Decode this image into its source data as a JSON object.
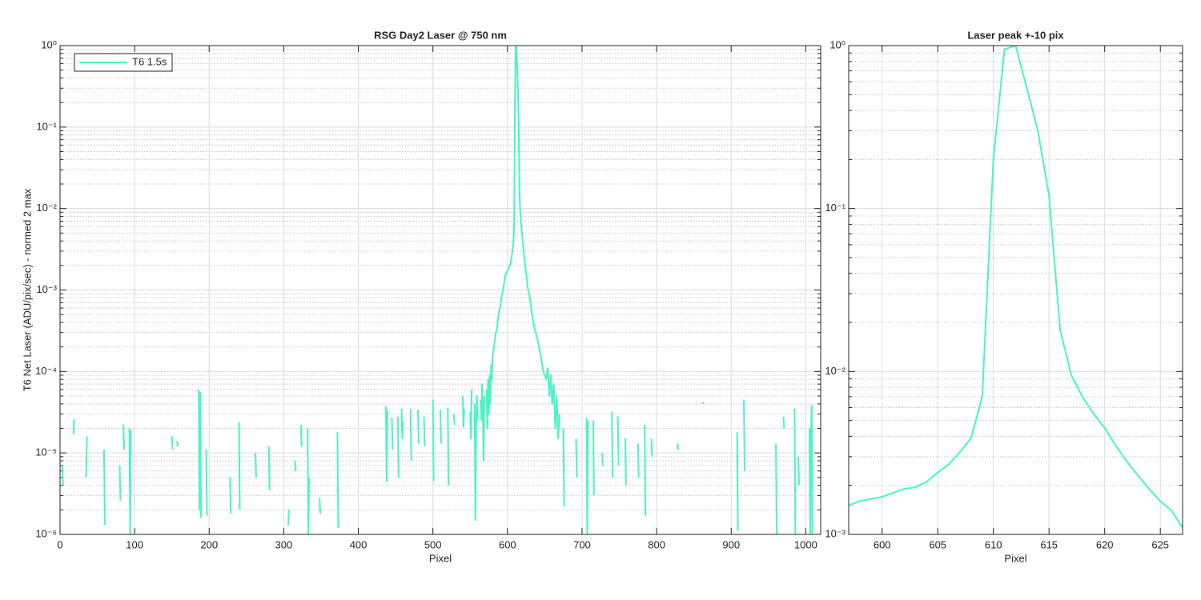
{
  "chart_data": [
    {
      "type": "line",
      "title": "RSG  Day2 Laser @ 750 nm",
      "xlabel": "Pixel",
      "ylabel": "T6 Net Laser (ADU/pix/sec) - normed 2 max",
      "x": [
        3,
        4,
        10,
        18,
        19,
        25,
        35,
        36,
        45,
        59,
        60,
        70,
        80,
        81,
        83,
        85,
        86,
        90,
        93,
        94,
        95,
        96,
        150,
        151,
        154,
        157,
        158,
        170,
        186,
        187,
        188,
        189,
        192,
        196,
        197,
        210,
        228,
        229,
        235,
        240,
        241,
        250,
        262,
        263,
        270,
        280,
        281,
        290,
        306,
        307,
        310,
        315,
        316,
        320,
        323,
        324,
        328,
        332,
        333,
        334,
        340,
        348,
        349,
        360,
        372,
        373,
        400,
        437,
        438,
        439,
        442,
        445,
        446,
        450,
        453,
        454,
        455,
        458,
        459,
        460,
        462,
        470,
        471,
        473,
        480,
        481,
        483,
        488,
        489,
        492,
        500,
        501,
        503,
        510,
        511,
        513,
        520,
        521,
        523,
        528,
        529,
        532,
        540,
        541,
        542,
        543,
        550,
        551,
        552,
        553,
        556,
        557,
        558,
        559,
        560,
        561,
        564,
        565,
        566,
        567,
        568,
        569,
        570,
        572,
        573,
        574,
        575,
        576,
        577,
        578,
        579,
        580,
        582,
        584,
        586,
        588,
        590,
        592,
        594,
        596,
        597,
        598,
        599,
        600,
        601,
        602,
        603,
        604,
        605,
        606,
        607,
        608,
        609,
        610,
        611,
        612,
        613,
        614,
        615,
        616,
        617,
        618,
        619,
        620,
        621,
        622,
        623,
        624,
        625,
        626,
        627,
        630,
        633,
        636,
        640,
        644,
        648,
        652,
        654,
        656,
        658,
        660,
        662,
        664,
        666,
        668,
        670,
        671,
        675,
        676,
        678,
        692,
        693,
        700,
        706,
        707,
        708,
        709,
        715,
        716,
        720,
        727,
        728,
        732,
        740,
        741,
        743,
        748,
        749,
        750,
        758,
        759,
        762,
        775,
        776,
        780,
        784,
        785,
        788,
        793,
        794,
        800,
        828,
        829,
        835,
        862,
        863,
        870,
        908,
        909,
        912,
        917,
        918,
        925,
        960,
        961,
        965,
        970,
        971,
        975,
        985,
        986,
        988,
        990,
        991,
        994,
        1005,
        1006,
        1007,
        1008,
        1009
      ],
      "series": [
        {
          "name": "T6 1.5s",
          "color": "#48f5c4",
          "values": [
            7e-06,
            4e-06,
            null,
            1.7e-05,
            2.6e-05,
            null,
            5e-06,
            1.6e-05,
            null,
            1.1e-05,
            1.3e-06,
            null,
            7e-06,
            2.6e-06,
            null,
            2.2e-05,
            1.1e-05,
            null,
            2e-05,
            1e-06,
            1.9e-05,
            null,
            1.6e-05,
            1.1e-05,
            null,
            1.4e-05,
            1.2e-05,
            null,
            6e-05,
            2e-06,
            5.5e-05,
            1.6e-06,
            null,
            1.1e-05,
            1.7e-06,
            null,
            5e-06,
            1.8e-06,
            null,
            2.4e-05,
            2e-06,
            null,
            1e-05,
            5e-06,
            null,
            1.2e-05,
            3.5e-06,
            null,
            1.3e-06,
            2e-06,
            null,
            8e-06,
            6e-06,
            null,
            2.2e-05,
            1.2e-05,
            null,
            2e-05,
            1e-06,
            5e-06,
            null,
            2.8e-06,
            1.8e-06,
            null,
            1.8e-05,
            1.2e-06,
            null,
            3.7e-05,
            4.5e-06,
            3.3e-05,
            null,
            2.7e-05,
            1.1e-05,
            null,
            2.8e-05,
            5e-06,
            null,
            3.5e-05,
            1.5e-05,
            2.4e-05,
            null,
            3.5e-05,
            8e-06,
            null,
            3.4e-05,
            1.3e-05,
            null,
            2.8e-05,
            1.2e-05,
            null,
            4.5e-05,
            4.5e-06,
            null,
            3.4e-05,
            1.3e-05,
            null,
            3.6e-05,
            4e-06,
            null,
            3e-05,
            2.2e-05,
            null,
            5e-05,
            2.1e-05,
            3.5e-05,
            null,
            3.2e-05,
            1.5e-05,
            6e-05,
            null,
            4e-05,
            1.5e-06,
            2e-05,
            5e-05,
            2.5e-05,
            null,
            4.5e-05,
            2.5e-05,
            7e-05,
            3e-05,
            8e-06,
            5e-05,
            null,
            6e-05,
            2e-05,
            8e-05,
            3e-05,
            9e-05,
            4e-05,
            0.00012,
            8e-05,
            0.00015,
            0.0002,
            0.00028,
            0.00035,
            0.0005,
            0.0006,
            0.0008,
            0.001,
            0.0013,
            0.0015,
            0.0016,
            0.00165,
            0.0017,
            0.0018,
            0.0019,
            0.00195,
            0.0021,
            0.0024,
            0.0027,
            0.0032,
            0.0039,
            0.007,
            0.2,
            0.95,
            1,
            0.55,
            0.3,
            0.12,
            0.018,
            0.0095,
            0.007,
            0.0055,
            0.0045,
            0.0035,
            0.0028,
            0.0023,
            0.0019,
            0.0016,
            0.0014,
            0.0011,
            0.0008,
            0.0005,
            0.00035,
            0.00025,
            0.00017,
            0.0001,
            8e-05,
            0.00011,
            5e-05,
            9e-05,
            4e-05,
            7e-05,
            2e-05,
            5e-05,
            1.5e-05,
            3e-05,
            null,
            2e-05,
            2.2e-06,
            null,
            1.5e-05,
            5e-06,
            null,
            2.7e-05,
            1e-06,
            2.5e-05,
            null,
            2.5e-05,
            3e-06,
            null,
            1e-05,
            7e-06,
            null,
            3.2e-05,
            5e-06,
            null,
            2.8e-05,
            7e-06,
            null,
            1.5e-05,
            4e-06,
            null,
            1.3e-05,
            5e-06,
            null,
            2.2e-05,
            1.7e-06,
            null,
            1.5e-05,
            9e-06,
            null,
            1.3e-05,
            1.1e-05,
            null,
            4.2e-05,
            4e-05,
            null,
            1.8e-05,
            1.1e-06,
            null,
            4.5e-05,
            6e-06,
            null,
            1.3e-05,
            1e-06,
            null,
            2.8e-05,
            2e-05,
            null,
            3.5e-05,
            1e-06,
            null,
            9e-06,
            4e-06,
            null,
            2e-05,
            1e-06,
            1.5e-05,
            3.8e-05,
            1e-06
          ]
        }
      ],
      "xlim": [
        0,
        1020
      ],
      "ylim": [
        1e-06,
        1
      ],
      "log_y": true,
      "grid": true,
      "minor_grid": true,
      "legend": "upper left",
      "xticks": [
        0,
        100,
        200,
        300,
        400,
        500,
        600,
        700,
        800,
        900,
        1000
      ],
      "yticks": [
        {
          "value": 1e-06,
          "label": "10⁻⁶"
        },
        {
          "value": 1e-05,
          "label": "10⁻⁵"
        },
        {
          "value": 0.0001,
          "label": "10⁻⁴"
        },
        {
          "value": 0.001,
          "label": "10⁻³"
        },
        {
          "value": 0.01,
          "label": "10⁻²"
        },
        {
          "value": 0.1,
          "label": "10⁻¹"
        },
        {
          "value": 1,
          "label": "10⁰"
        }
      ]
    },
    {
      "type": "line",
      "title": "Laser peak +-10 pix",
      "xlabel": "Pixel",
      "x": [
        597,
        598,
        599,
        600,
        601,
        602,
        603,
        604,
        605,
        606,
        607,
        608,
        609,
        610,
        611,
        612,
        613,
        614,
        615,
        616,
        617,
        618,
        619,
        620,
        621,
        622,
        623,
        624,
        625,
        626,
        627
      ],
      "series": [
        {
          "color": "#48f5c4",
          "values": [
            0.0015,
            0.0016,
            0.00165,
            0.0017,
            0.0018,
            0.0019,
            0.00195,
            0.0021,
            0.0024,
            0.0027,
            0.0032,
            0.0039,
            0.007,
            0.2,
            0.95,
            1,
            0.55,
            0.3,
            0.12,
            0.018,
            0.0095,
            0.007,
            0.0055,
            0.0045,
            0.0035,
            0.0028,
            0.0023,
            0.0019,
            0.0016,
            0.0014,
            0.0011
          ]
        }
      ],
      "xlim": [
        597,
        627
      ],
      "ylim": [
        0.001,
        1
      ],
      "log_y": true,
      "grid": true,
      "minor_grid": true,
      "xticks": [
        600,
        605,
        610,
        615,
        620,
        625
      ],
      "yticks": [
        {
          "value": 0.001,
          "label": "10⁻³"
        },
        {
          "value": 0.01,
          "label": "10⁻²"
        },
        {
          "value": 0.1,
          "label": "10⁻¹"
        },
        {
          "value": 1,
          "label": "10⁰"
        }
      ]
    }
  ]
}
